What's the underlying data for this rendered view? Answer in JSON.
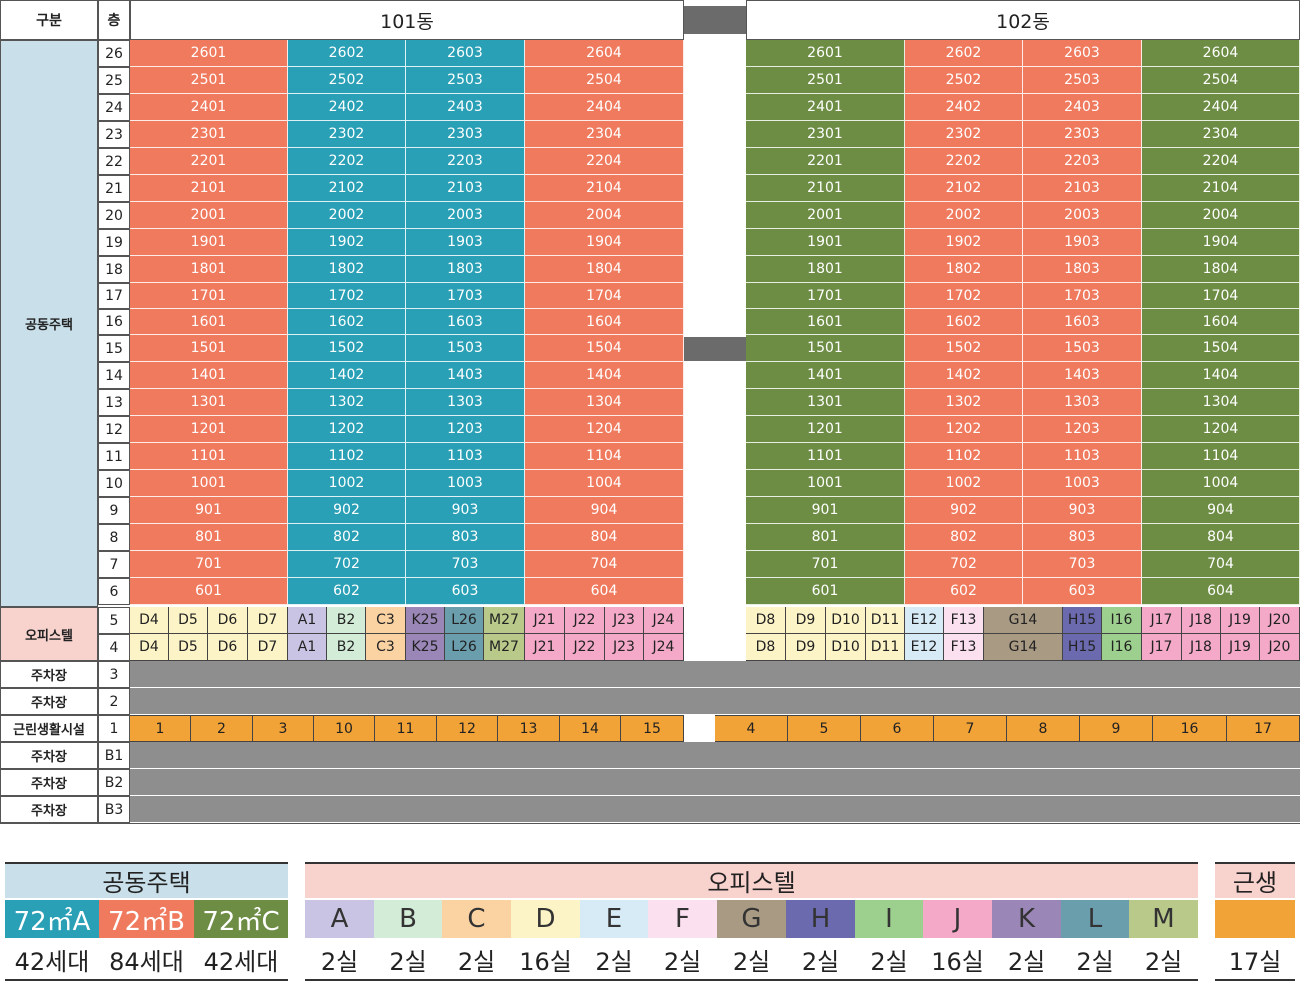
{
  "header": {
    "category_label": "구분",
    "floor_label": "층",
    "building1": "101동",
    "building2": "102동"
  },
  "categories": {
    "apartment": "공동주택",
    "officetel": "오피스텔",
    "parking": "주차장",
    "retail": "근린생활시설"
  },
  "floors": {
    "residential": [
      "26",
      "25",
      "24",
      "23",
      "22",
      "21",
      "20",
      "19",
      "18",
      "17",
      "16",
      "15",
      "14",
      "13",
      "12",
      "11",
      "10",
      "9",
      "8",
      "7",
      "6"
    ],
    "officetel": [
      "5",
      "4"
    ],
    "parking_upper": [
      "3",
      "2"
    ],
    "retail": "1",
    "basement": [
      "B1",
      "B2",
      "B3"
    ]
  },
  "units": {
    "b101": [
      [
        "2601",
        "2602",
        "2603",
        "2604"
      ],
      [
        "2501",
        "2502",
        "2503",
        "2504"
      ],
      [
        "2401",
        "2402",
        "2403",
        "2404"
      ],
      [
        "2301",
        "2302",
        "2303",
        "2304"
      ],
      [
        "2201",
        "2202",
        "2203",
        "2204"
      ],
      [
        "2101",
        "2102",
        "2103",
        "2104"
      ],
      [
        "2001",
        "2002",
        "2003",
        "2004"
      ],
      [
        "1901",
        "1902",
        "1903",
        "1904"
      ],
      [
        "1801",
        "1802",
        "1803",
        "1804"
      ],
      [
        "1701",
        "1702",
        "1703",
        "1704"
      ],
      [
        "1601",
        "1602",
        "1603",
        "1604"
      ],
      [
        "1501",
        "1502",
        "1503",
        "1504"
      ],
      [
        "1401",
        "1402",
        "1403",
        "1404"
      ],
      [
        "1301",
        "1302",
        "1303",
        "1304"
      ],
      [
        "1201",
        "1202",
        "1203",
        "1204"
      ],
      [
        "1101",
        "1102",
        "1103",
        "1104"
      ],
      [
        "1001",
        "1002",
        "1003",
        "1004"
      ],
      [
        "901",
        "902",
        "903",
        "904"
      ],
      [
        "801",
        "802",
        "803",
        "804"
      ],
      [
        "701",
        "702",
        "703",
        "704"
      ],
      [
        "601",
        "602",
        "603",
        "604"
      ]
    ],
    "b102": [
      [
        "2601",
        "2602",
        "2603",
        "2604"
      ],
      [
        "2501",
        "2502",
        "2503",
        "2504"
      ],
      [
        "2401",
        "2402",
        "2403",
        "2404"
      ],
      [
        "2301",
        "2302",
        "2303",
        "2304"
      ],
      [
        "2201",
        "2202",
        "2203",
        "2204"
      ],
      [
        "2101",
        "2102",
        "2103",
        "2104"
      ],
      [
        "2001",
        "2002",
        "2003",
        "2004"
      ],
      [
        "1901",
        "1902",
        "1903",
        "1904"
      ],
      [
        "1801",
        "1802",
        "1803",
        "1804"
      ],
      [
        "1701",
        "1702",
        "1703",
        "1704"
      ],
      [
        "1601",
        "1602",
        "1603",
        "1604"
      ],
      [
        "1501",
        "1502",
        "1503",
        "1504"
      ],
      [
        "1401",
        "1402",
        "1403",
        "1404"
      ],
      [
        "1301",
        "1302",
        "1303",
        "1304"
      ],
      [
        "1201",
        "1202",
        "1203",
        "1204"
      ],
      [
        "1101",
        "1102",
        "1103",
        "1104"
      ],
      [
        "1001",
        "1002",
        "1003",
        "1004"
      ],
      [
        "901",
        "902",
        "903",
        "904"
      ],
      [
        "801",
        "802",
        "803",
        "804"
      ],
      [
        "701",
        "702",
        "703",
        "704"
      ],
      [
        "601",
        "602",
        "603",
        "604"
      ]
    ]
  },
  "officetel_units": {
    "b101": [
      "D4",
      "D5",
      "D6",
      "D7",
      "A1",
      "B2",
      "C3",
      "K25",
      "L26",
      "M27",
      "J21",
      "J22",
      "J23",
      "J24"
    ],
    "b102": [
      "D8",
      "D9",
      "D10",
      "D11",
      "E12",
      "F13",
      "G14",
      "H15",
      "I16",
      "J17",
      "J18",
      "J19",
      "J20"
    ]
  },
  "retail_units": {
    "b101": [
      "1",
      "2",
      "3",
      "10",
      "11",
      "12",
      "13",
      "14",
      "15"
    ],
    "b102": [
      "4",
      "5",
      "6",
      "7",
      "8",
      "9",
      "16",
      "17"
    ]
  },
  "colors": {
    "type_a": "#f07a5e",
    "type_b": "#2aa0b6",
    "type_c": "#6d8d45",
    "category_bg": "#c9e0ea",
    "officetel_cat_bg": "#f8d3ce",
    "parking": "#8e8e8e",
    "retail": "#f1a338",
    "office_A": "#c9c4e3",
    "office_B": "#d3ecd7",
    "office_C": "#fbd3a3",
    "office_D": "#fcf4c7",
    "office_E": "#d7ebf7",
    "office_F": "#fbe0f0",
    "office_G": "#a99a84",
    "office_H": "#6c6aae",
    "office_I": "#9dd08e",
    "office_J": "#f4a9c8",
    "office_K": "#9b86b8",
    "office_L": "#6a9ead",
    "office_M": "#b8c98a"
  },
  "legend": {
    "apartment": {
      "title": "공동주택",
      "types": [
        "72㎡A",
        "72㎡B",
        "72㎡C"
      ],
      "counts": [
        "42세대",
        "84세대",
        "42세대"
      ]
    },
    "officetel": {
      "title": "오피스텔",
      "types": [
        "A",
        "B",
        "C",
        "D",
        "E",
        "F",
        "G",
        "H",
        "I",
        "J",
        "K",
        "L",
        "M"
      ],
      "counts": [
        "2실",
        "2실",
        "2실",
        "16실",
        "2실",
        "2실",
        "2실",
        "2실",
        "2실",
        "16실",
        "2실",
        "2실",
        "2실"
      ]
    },
    "retail": {
      "title": "근생",
      "count": "17실"
    }
  }
}
